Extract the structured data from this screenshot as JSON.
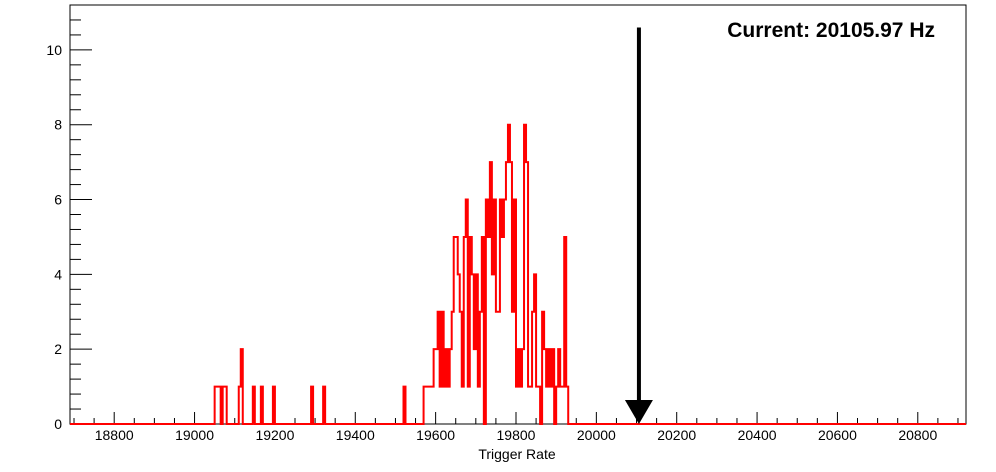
{
  "chart_data": {
    "type": "histogram-step",
    "xlabel": "Trigger Rate",
    "ylabel": "",
    "xlim": [
      18690,
      20920
    ],
    "ylim": [
      0,
      11.2
    ],
    "x_ticks": [
      18800,
      19000,
      19200,
      19400,
      19600,
      19800,
      20000,
      20200,
      20400,
      20600,
      20800
    ],
    "y_ticks": [
      0,
      2,
      4,
      6,
      8,
      10
    ],
    "grid": false,
    "line_color": "#ff0000",
    "annotation": {
      "text": "Current: 20105.97 Hz",
      "arrow_x": 20105.97,
      "arrow_top_y": 10.6,
      "arrow_bottom_y": 0,
      "color": "#000000"
    },
    "series": [
      {
        "bin_width": 5,
        "bins_start": 19040,
        "counts": [
          0,
          0,
          1,
          1,
          1,
          0,
          1,
          1,
          0,
          0,
          0,
          0,
          0,
          0,
          1,
          2,
          0,
          0,
          0,
          0,
          0,
          1,
          0,
          0,
          0,
          1,
          0,
          0,
          0,
          0,
          0,
          1,
          0,
          0,
          0,
          0,
          0,
          0,
          0,
          0,
          0,
          0,
          0,
          0,
          0,
          0,
          0,
          0,
          0,
          0,
          1,
          0,
          0,
          0,
          0,
          0,
          1,
          0,
          0,
          0,
          0,
          0,
          0,
          0,
          0,
          0,
          0,
          0,
          0,
          0,
          0,
          0,
          0,
          0,
          0,
          0,
          0,
          0,
          0,
          0,
          0,
          0,
          0,
          0,
          0,
          0,
          0,
          0,
          0,
          0,
          0,
          0,
          0,
          0,
          0,
          0,
          1,
          0,
          0,
          0,
          0,
          0,
          0,
          0,
          0,
          0,
          1,
          1,
          1,
          1,
          1,
          2,
          2,
          3,
          1,
          3,
          1,
          2,
          1,
          2,
          3,
          5,
          5,
          4,
          3,
          1,
          5,
          6,
          1,
          5,
          4,
          2,
          4,
          1,
          3,
          5,
          0,
          6,
          5,
          7,
          4,
          6,
          3,
          3,
          6,
          5,
          6,
          7,
          8,
          7,
          3,
          6,
          1,
          2,
          1,
          2,
          8,
          7,
          1,
          1,
          3,
          4,
          1,
          1,
          0,
          3,
          2,
          1,
          2,
          1,
          2,
          0,
          1,
          2,
          1,
          1,
          5,
          1
        ]
      }
    ]
  }
}
